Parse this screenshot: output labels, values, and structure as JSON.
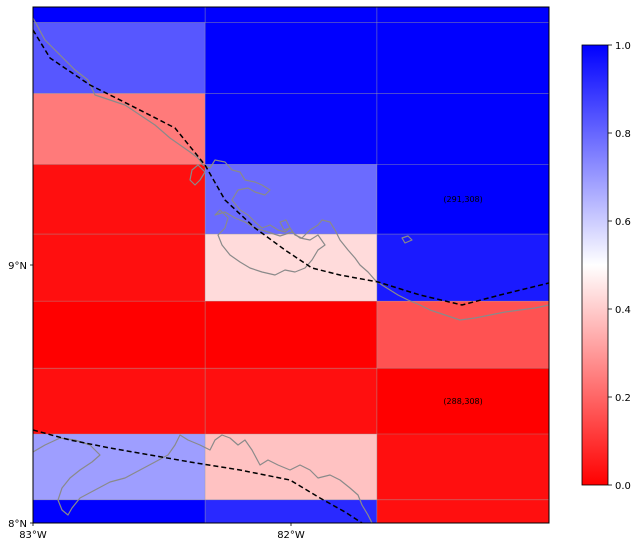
{
  "map": {
    "region": "Panama (western) / Costa Rica border area",
    "projection": "PlateCarree",
    "extent": {
      "lon_min": -83.0,
      "lon_max": -81.0,
      "lat_min": 8.0,
      "lat_max": 10.0
    },
    "lon_ticks": [
      {
        "value": -83,
        "label": "83°W"
      },
      {
        "value": -82,
        "label": "82°W"
      }
    ],
    "lat_ticks": [
      {
        "value": 8,
        "label": "8°N"
      },
      {
        "value": 9,
        "label": "9°N"
      }
    ],
    "coastline_color": "#8a8a8a",
    "border_style": "dashed black",
    "gridlines": true
  },
  "colorbar": {
    "min": 0.0,
    "max": 1.0,
    "colormap": "bwr_r",
    "ticks": [
      {
        "value": 1.0,
        "label": "1.0"
      },
      {
        "value": 0.8,
        "label": "0.8"
      },
      {
        "value": 0.6,
        "label": "0.6"
      },
      {
        "value": 0.4,
        "label": "0.4"
      },
      {
        "value": 0.2,
        "label": "0.2"
      },
      {
        "value": 0.0,
        "label": "0.0"
      }
    ]
  },
  "chart_data": {
    "type": "heatmap",
    "columns_lon_edges": [
      -83.0,
      -82.333,
      -81.667,
      -81.0
    ],
    "rows": [
      {
        "lat_top": 10.0,
        "lat_bottom": 9.94,
        "values": [
          1.0,
          1.0,
          1.0
        ]
      },
      {
        "lat_top": 9.94,
        "lat_bottom": 9.665,
        "values": [
          0.83,
          1.0,
          1.0
        ]
      },
      {
        "lat_top": 9.665,
        "lat_bottom": 9.39,
        "values": [
          0.24,
          1.0,
          1.0
        ]
      },
      {
        "lat_top": 9.39,
        "lat_bottom": 9.12,
        "values": [
          0.03,
          0.79,
          1.0
        ]
      },
      {
        "lat_top": 9.12,
        "lat_bottom": 8.86,
        "values": [
          0.03,
          0.43,
          0.95
        ]
      },
      {
        "lat_top": 8.86,
        "lat_bottom": 8.6,
        "values": [
          0.0,
          0.0,
          0.16
        ]
      },
      {
        "lat_top": 8.6,
        "lat_bottom": 8.345,
        "values": [
          0.03,
          0.03,
          0.0
        ]
      },
      {
        "lat_top": 8.345,
        "lat_bottom": 8.09,
        "values": [
          0.69,
          0.38,
          0.03
        ]
      },
      {
        "lat_top": 8.09,
        "lat_bottom": 8.0,
        "values": [
          1.0,
          0.92,
          0.03
        ]
      }
    ],
    "annotations": [
      {
        "text": "(291,308)",
        "lon": -81.333,
        "lat": 9.255
      },
      {
        "text": "(288,308)",
        "lon": -81.333,
        "lat": 8.472
      }
    ]
  }
}
